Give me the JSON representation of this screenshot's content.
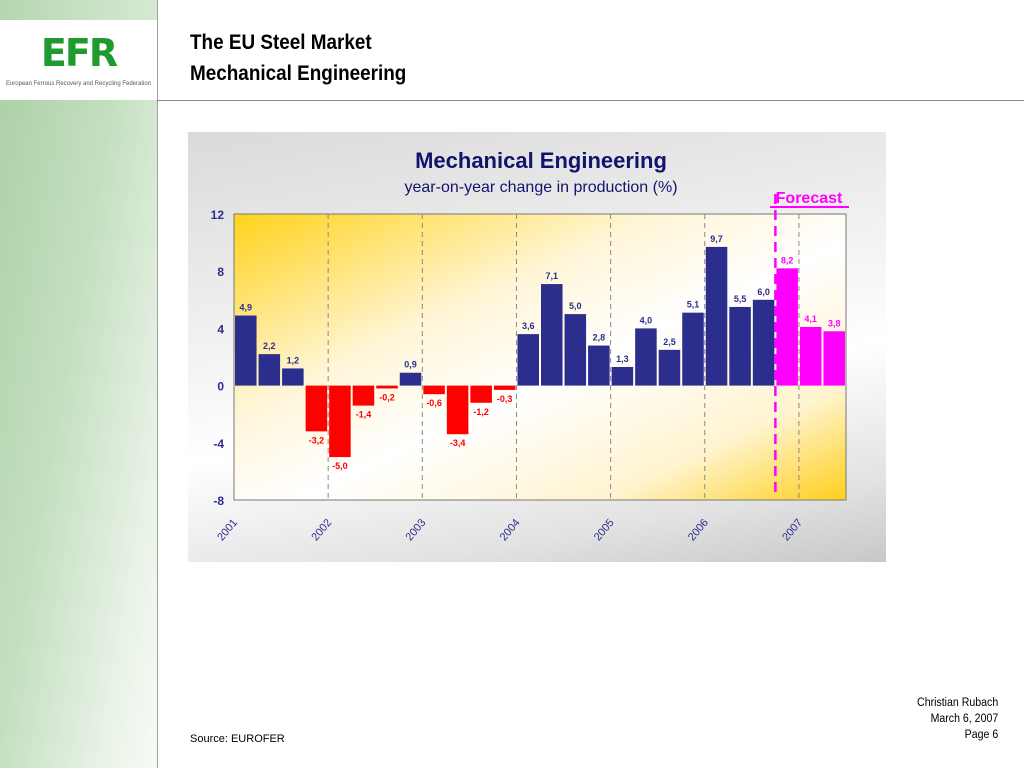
{
  "sidebar": {
    "logo_text": "EFR",
    "logo_tagline": "European Ferrous Recovery and Recycling Federation",
    "logo_color": "#1e9a2e"
  },
  "header": {
    "title_line1": "The EU Steel Market",
    "title_line2": "Mechanical Engineering"
  },
  "footer": {
    "source": "Source: EUROFER",
    "author": "Christian Rubach",
    "date": "March 6, 2007",
    "page": "Page 6"
  },
  "chart_data": {
    "type": "bar",
    "title": "Mechanical Engineering",
    "subtitle": "year-on-year change in production (%)",
    "xlabel": "",
    "ylabel": "",
    "ylim": [
      -8,
      12
    ],
    "yticks": [
      12,
      8,
      4,
      0,
      -4,
      -8
    ],
    "grid": "vertical dashed lines at year boundaries",
    "annotation": "Forecast",
    "x_tick_labels": [
      "2001",
      "2002",
      "2003",
      "2004",
      "2005",
      "2006",
      "2007"
    ],
    "series": [
      {
        "name": "year-on-year change",
        "values": [
          4.9,
          2.2,
          1.2,
          -3.2,
          -5.0,
          -1.4,
          -0.2,
          0.9,
          -0.6,
          -3.4,
          -1.2,
          -0.3,
          3.6,
          7.1,
          5.0,
          2.8,
          1.3,
          4.0,
          2.5,
          5.1,
          9.7,
          5.5,
          6.0,
          8.2,
          4.1,
          3.8
        ],
        "labels": [
          "4,9",
          "2,2",
          "1,2",
          "-3,2",
          "-5,0",
          "-1,4",
          "-0,2",
          "0,9",
          "-0,6",
          "-3,4",
          "-1,2",
          "-0,3",
          "3,6",
          "7,1",
          "5,0",
          "2,8",
          "1,3",
          "4,0",
          "2,5",
          "5,1",
          "9,7",
          "5,5",
          "6,0",
          "8,2",
          "4,1",
          "3,8"
        ],
        "forecast_from_index": 23
      }
    ],
    "colors": {
      "positive": "#2b2e8c",
      "negative": "#ff0000",
      "forecast": "#ff00ff",
      "axis_text": "#2b2e8c",
      "title": "#13136e"
    }
  }
}
